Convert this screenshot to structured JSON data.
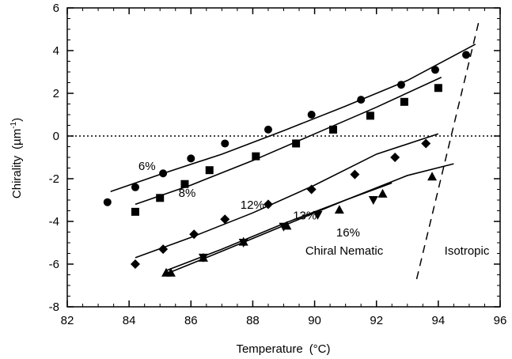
{
  "chart_data": {
    "type": "scatter",
    "xlabel": "Temperature",
    "xlabel_unit": "(°C)",
    "ylabel": "Chirality",
    "ylabel_unit": "(µm",
    "ylabel_sup": "-1",
    "ylabel_close": ")",
    "xlim": [
      82,
      96
    ],
    "ylim": [
      -8,
      6
    ],
    "xticks": [
      82,
      84,
      86,
      88,
      90,
      92,
      94,
      96
    ],
    "yticks": [
      -8,
      -6,
      -4,
      -2,
      0,
      2,
      4,
      6
    ],
    "grid": false,
    "zero_line": 0,
    "series": [
      {
        "name": "6%",
        "marker": "circle",
        "label_at": [
          84.3,
          -1.6
        ],
        "points": [
          [
            83.3,
            -3.1
          ],
          [
            84.2,
            -2.4
          ],
          [
            85.1,
            -1.75
          ],
          [
            86.0,
            -1.05
          ],
          [
            87.1,
            -0.35
          ],
          [
            88.5,
            0.3
          ],
          [
            89.9,
            1.0
          ],
          [
            91.5,
            1.7
          ],
          [
            92.8,
            2.4
          ],
          [
            93.9,
            3.1
          ],
          [
            94.9,
            3.8
          ]
        ],
        "fit": [
          [
            83.4,
            -2.6
          ],
          [
            85.0,
            -1.8
          ],
          [
            87.0,
            -0.85
          ],
          [
            89.0,
            0.25
          ],
          [
            91.0,
            1.4
          ],
          [
            93.0,
            2.6
          ],
          [
            95.2,
            4.3
          ]
        ]
      },
      {
        "name": "8%",
        "marker": "square",
        "label_at": [
          85.6,
          -2.85
        ],
        "points": [
          [
            84.2,
            -3.55
          ],
          [
            85.0,
            -2.9
          ],
          [
            85.8,
            -2.25
          ],
          [
            86.6,
            -1.6
          ],
          [
            88.1,
            -0.95
          ],
          [
            89.4,
            -0.35
          ],
          [
            90.6,
            0.3
          ],
          [
            91.8,
            0.95
          ],
          [
            92.9,
            1.6
          ],
          [
            94.0,
            2.25
          ]
        ],
        "fit": [
          [
            84.2,
            -3.2
          ],
          [
            86.0,
            -2.3
          ],
          [
            88.0,
            -1.15
          ],
          [
            90.0,
            0.1
          ],
          [
            92.0,
            1.35
          ],
          [
            94.1,
            2.75
          ]
        ]
      },
      {
        "name": "12%",
        "marker": "diamond",
        "label_at": [
          87.6,
          -3.4
        ],
        "points": [
          [
            84.2,
            -6.0
          ],
          [
            85.1,
            -5.3
          ],
          [
            86.1,
            -4.6
          ],
          [
            87.1,
            -3.9
          ],
          [
            88.5,
            -3.2
          ],
          [
            89.9,
            -2.5
          ],
          [
            91.3,
            -1.8
          ],
          [
            92.6,
            -1.0
          ],
          [
            93.6,
            -0.35
          ]
        ],
        "fit": [
          [
            84.2,
            -5.7
          ],
          [
            86.0,
            -4.75
          ],
          [
            88.0,
            -3.6
          ],
          [
            90.0,
            -2.3
          ],
          [
            92.0,
            -0.85
          ],
          [
            94.0,
            0.1
          ]
        ]
      },
      {
        "name": "13%",
        "marker": "triangle-down",
        "label_at": [
          89.3,
          -3.9
        ],
        "points": [
          [
            86.4,
            -5.7
          ],
          [
            87.7,
            -5.0
          ],
          [
            89.0,
            -4.25
          ],
          [
            90.1,
            -3.7
          ],
          [
            91.9,
            -3.0
          ]
        ],
        "fit": [
          [
            85.3,
            -6.4
          ],
          [
            87.0,
            -5.4
          ],
          [
            89.0,
            -4.2
          ],
          [
            91.0,
            -3.0
          ],
          [
            92.5,
            -2.2
          ]
        ]
      },
      {
        "name": "16%",
        "marker": "triangle-up",
        "label_at": [
          90.7,
          -4.7
        ],
        "points": [
          [
            85.2,
            -6.4
          ],
          [
            85.35,
            -6.4
          ],
          [
            86.4,
            -5.7
          ],
          [
            87.7,
            -4.95
          ],
          [
            89.1,
            -4.2
          ],
          [
            90.8,
            -3.45
          ],
          [
            92.2,
            -2.7
          ],
          [
            93.8,
            -1.9
          ]
        ],
        "fit": [
          [
            85.2,
            -6.3
          ],
          [
            87.0,
            -5.3
          ],
          [
            89.0,
            -4.1
          ],
          [
            91.0,
            -3.0
          ],
          [
            93.0,
            -1.85
          ],
          [
            94.5,
            -1.3
          ]
        ]
      }
    ],
    "phase_boundary": [
      [
        93.3,
        -6.7
      ],
      [
        95.3,
        5.3
      ]
    ],
    "annotations": [
      {
        "text": "Chiral Nematic",
        "at": [
          89.7,
          -5.55
        ]
      },
      {
        "text": "Isotropic",
        "at": [
          94.2,
          -5.55
        ]
      }
    ]
  }
}
